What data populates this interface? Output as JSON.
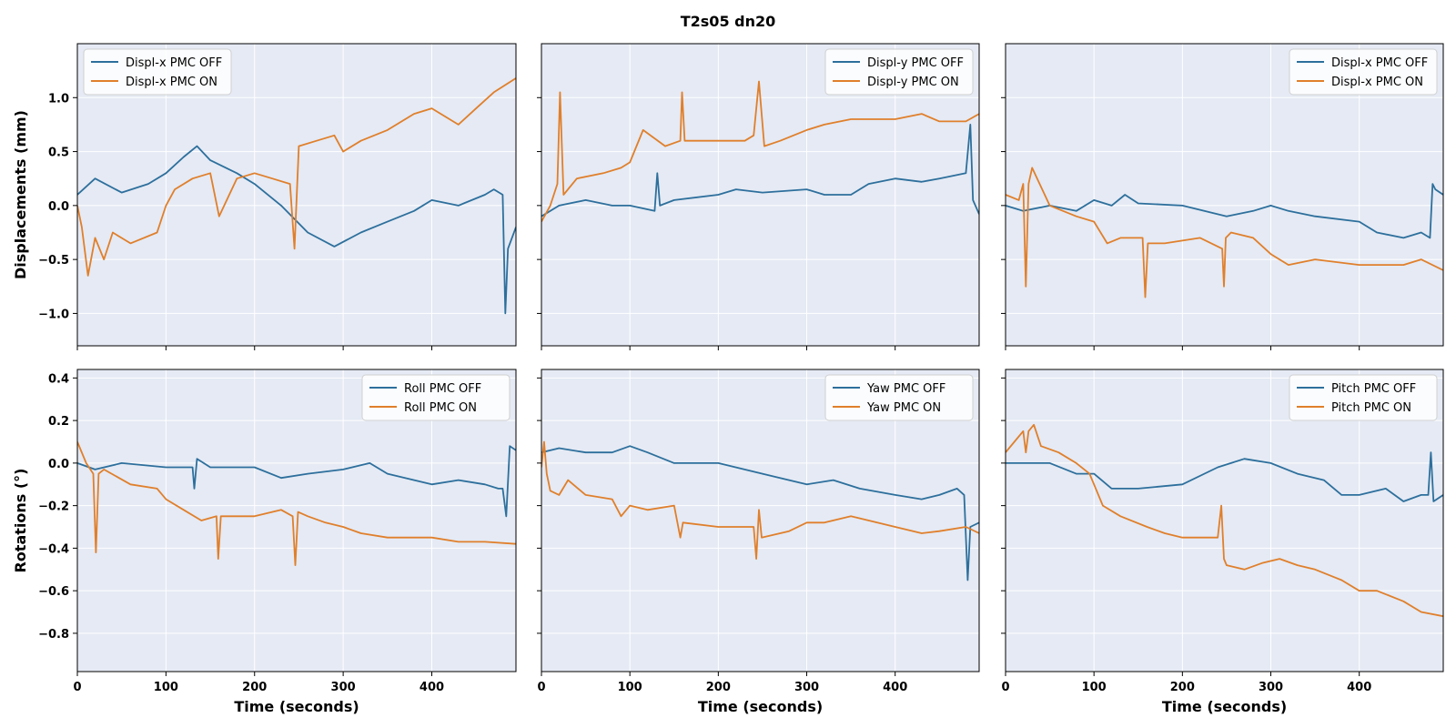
{
  "suptitle": "T2s05  dn20",
  "colors": {
    "off": "#2d6f9c",
    "on": "#e07f2b",
    "panel_bg": "#e5eaf4",
    "grid": "#ffffff"
  },
  "chart_data": [
    {
      "type": "line",
      "panel": "top-left",
      "ylabel": "Displacements (mm)",
      "xlabel": "",
      "xlim": [
        0,
        495
      ],
      "ylim": [
        -1.3,
        1.5
      ],
      "xticks": [
        0,
        100,
        200,
        300,
        400
      ],
      "yticks": [
        -1.0,
        -0.5,
        0.0,
        0.5,
        1.0
      ],
      "ytick_labels": [
        "−1.0",
        "−0.5",
        "0.0",
        "0.5",
        "1.0"
      ],
      "legend": "top-left",
      "series": [
        {
          "name": "Displ-x PMC OFF",
          "color": "off",
          "x": [
            0,
            20,
            50,
            80,
            100,
            120,
            135,
            150,
            180,
            200,
            230,
            260,
            290,
            320,
            350,
            380,
            400,
            430,
            460,
            470,
            480,
            483,
            486,
            495
          ],
          "y": [
            0.1,
            0.25,
            0.12,
            0.2,
            0.3,
            0.45,
            0.55,
            0.42,
            0.3,
            0.2,
            0.0,
            -0.25,
            -0.38,
            -0.25,
            -0.15,
            -0.05,
            0.05,
            0.0,
            0.1,
            0.15,
            0.1,
            -1.0,
            -0.4,
            -0.2
          ]
        },
        {
          "name": "Displ-x PMC ON",
          "color": "on",
          "x": [
            0,
            5,
            12,
            20,
            30,
            40,
            60,
            90,
            100,
            110,
            130,
            150,
            160,
            180,
            200,
            220,
            240,
            245,
            250,
            270,
            290,
            300,
            320,
            350,
            380,
            400,
            420,
            430,
            450,
            470,
            495
          ],
          "y": [
            0.0,
            -0.2,
            -0.65,
            -0.3,
            -0.5,
            -0.25,
            -0.35,
            -0.25,
            0.0,
            0.15,
            0.25,
            0.3,
            -0.1,
            0.25,
            0.3,
            0.25,
            0.2,
            -0.4,
            0.55,
            0.6,
            0.65,
            0.5,
            0.6,
            0.7,
            0.85,
            0.9,
            0.8,
            0.75,
            0.9,
            1.05,
            1.18
          ]
        }
      ]
    },
    {
      "type": "line",
      "panel": "top-middle",
      "ylabel": "",
      "xlabel": "",
      "xlim": [
        0,
        495
      ],
      "ylim": [
        -1.3,
        1.5
      ],
      "xticks": [
        0,
        100,
        200,
        300,
        400
      ],
      "yticks": [
        -1.0,
        -0.5,
        0.0,
        0.5,
        1.0
      ],
      "legend": "top-right",
      "series": [
        {
          "name": "Displ-y PMC OFF",
          "color": "off",
          "x": [
            0,
            20,
            50,
            80,
            100,
            128,
            131,
            134,
            150,
            200,
            220,
            250,
            300,
            320,
            350,
            370,
            400,
            430,
            450,
            480,
            485,
            488,
            495
          ],
          "y": [
            -0.1,
            0.0,
            0.05,
            0.0,
            0.0,
            -0.05,
            0.3,
            0.0,
            0.05,
            0.1,
            0.15,
            0.12,
            0.15,
            0.1,
            0.1,
            0.2,
            0.25,
            0.22,
            0.25,
            0.3,
            0.75,
            0.05,
            -0.08
          ]
        },
        {
          "name": "Displ-y PMC ON",
          "color": "on",
          "x": [
            0,
            10,
            18,
            21,
            25,
            40,
            70,
            90,
            100,
            115,
            140,
            157,
            159,
            162,
            200,
            230,
            240,
            246,
            252,
            270,
            300,
            320,
            350,
            380,
            400,
            430,
            450,
            480,
            495
          ],
          "y": [
            -0.15,
            0.0,
            0.2,
            1.05,
            0.1,
            0.25,
            0.3,
            0.35,
            0.4,
            0.7,
            0.55,
            0.6,
            1.05,
            0.6,
            0.6,
            0.6,
            0.65,
            1.15,
            0.55,
            0.6,
            0.7,
            0.75,
            0.8,
            0.8,
            0.8,
            0.85,
            0.78,
            0.78,
            0.85
          ]
        }
      ]
    },
    {
      "type": "line",
      "panel": "top-right",
      "ylabel": "",
      "xlabel": "",
      "xlim": [
        0,
        495
      ],
      "ylim": [
        -1.3,
        1.5
      ],
      "xticks": [
        0,
        100,
        200,
        300,
        400
      ],
      "yticks": [
        -1.0,
        -0.5,
        0.0,
        0.5,
        1.0
      ],
      "legend": "top-right",
      "series": [
        {
          "name": "Displ-x PMC OFF",
          "color": "off",
          "x": [
            0,
            20,
            50,
            80,
            100,
            120,
            135,
            150,
            200,
            250,
            280,
            300,
            320,
            350,
            400,
            420,
            450,
            470,
            480,
            483,
            486,
            495
          ],
          "y": [
            0.0,
            -0.05,
            0.0,
            -0.05,
            0.05,
            0.0,
            0.1,
            0.02,
            0.0,
            -0.1,
            -0.05,
            0.0,
            -0.05,
            -0.1,
            -0.15,
            -0.25,
            -0.3,
            -0.25,
            -0.3,
            0.2,
            0.15,
            0.1
          ]
        },
        {
          "name": "Displ-x PMC ON",
          "color": "on",
          "x": [
            0,
            15,
            20,
            23,
            26,
            30,
            50,
            80,
            100,
            115,
            130,
            155,
            158,
            161,
            180,
            220,
            245,
            247,
            249,
            255,
            280,
            300,
            320,
            350,
            400,
            450,
            470,
            495
          ],
          "y": [
            0.1,
            0.05,
            0.2,
            -0.75,
            0.2,
            0.35,
            0.0,
            -0.1,
            -0.15,
            -0.35,
            -0.3,
            -0.3,
            -0.85,
            -0.35,
            -0.35,
            -0.3,
            -0.4,
            -0.75,
            -0.3,
            -0.25,
            -0.3,
            -0.45,
            -0.55,
            -0.5,
            -0.55,
            -0.55,
            -0.5,
            -0.6
          ]
        }
      ]
    },
    {
      "type": "line",
      "panel": "bottom-left",
      "ylabel": "Rotations (°)",
      "xlabel": "Time (seconds)",
      "xlim": [
        0,
        495
      ],
      "ylim": [
        -0.98,
        0.44
      ],
      "xticks": [
        0,
        100,
        200,
        300,
        400
      ],
      "yticks": [
        -0.8,
        -0.6,
        -0.4,
        -0.2,
        0.0,
        0.2,
        0.4
      ],
      "ytick_labels": [
        "−0.8",
        "−0.6",
        "−0.4",
        "−0.2",
        "0.0",
        "0.2",
        "0.4"
      ],
      "legend": "top-right",
      "series": [
        {
          "name": "Roll PMC OFF",
          "color": "off",
          "x": [
            0,
            20,
            50,
            100,
            130,
            132,
            135,
            150,
            200,
            230,
            260,
            300,
            330,
            350,
            400,
            430,
            460,
            475,
            480,
            484,
            488,
            495
          ],
          "y": [
            0.0,
            -0.03,
            0.0,
            -0.02,
            -0.02,
            -0.12,
            0.02,
            -0.02,
            -0.02,
            -0.07,
            -0.05,
            -0.03,
            0.0,
            -0.05,
            -0.1,
            -0.08,
            -0.1,
            -0.12,
            -0.12,
            -0.25,
            0.08,
            0.06
          ]
        },
        {
          "name": "Roll PMC ON",
          "color": "on",
          "x": [
            0,
            10,
            18,
            21,
            24,
            30,
            60,
            90,
            100,
            120,
            140,
            157,
            159,
            162,
            200,
            230,
            243,
            246,
            249,
            260,
            280,
            300,
            320,
            350,
            400,
            430,
            460,
            495
          ],
          "y": [
            0.1,
            0.0,
            -0.05,
            -0.42,
            -0.05,
            -0.03,
            -0.1,
            -0.12,
            -0.17,
            -0.22,
            -0.27,
            -0.25,
            -0.45,
            -0.25,
            -0.25,
            -0.22,
            -0.25,
            -0.48,
            -0.23,
            -0.25,
            -0.28,
            -0.3,
            -0.33,
            -0.35,
            -0.35,
            -0.37,
            -0.37,
            -0.38
          ]
        }
      ]
    },
    {
      "type": "line",
      "panel": "bottom-middle",
      "ylabel": "",
      "xlabel": "Time (seconds)",
      "xlim": [
        0,
        495
      ],
      "ylim": [
        -0.98,
        0.44
      ],
      "xticks": [
        0,
        100,
        200,
        300,
        400
      ],
      "yticks": [
        -0.8,
        -0.6,
        -0.4,
        -0.2,
        0.0,
        0.2,
        0.4
      ],
      "legend": "top-right",
      "series": [
        {
          "name": "Yaw PMC OFF",
          "color": "off",
          "x": [
            0,
            20,
            50,
            80,
            100,
            120,
            150,
            200,
            250,
            280,
            300,
            330,
            360,
            400,
            430,
            450,
            470,
            478,
            482,
            485,
            495
          ],
          "y": [
            0.05,
            0.07,
            0.05,
            0.05,
            0.08,
            0.05,
            0.0,
            0.0,
            -0.05,
            -0.08,
            -0.1,
            -0.08,
            -0.12,
            -0.15,
            -0.17,
            -0.15,
            -0.12,
            -0.15,
            -0.55,
            -0.3,
            -0.28
          ]
        },
        {
          "name": "Yaw PMC ON",
          "color": "on",
          "x": [
            0,
            3,
            6,
            10,
            20,
            30,
            50,
            80,
            90,
            100,
            120,
            150,
            157,
            160,
            200,
            240,
            243,
            246,
            249,
            280,
            300,
            320,
            350,
            400,
            430,
            450,
            480,
            495
          ],
          "y": [
            -0.02,
            0.1,
            -0.05,
            -0.13,
            -0.15,
            -0.08,
            -0.15,
            -0.17,
            -0.25,
            -0.2,
            -0.22,
            -0.2,
            -0.35,
            -0.28,
            -0.3,
            -0.3,
            -0.45,
            -0.22,
            -0.35,
            -0.32,
            -0.28,
            -0.28,
            -0.25,
            -0.3,
            -0.33,
            -0.32,
            -0.3,
            -0.33
          ]
        }
      ]
    },
    {
      "type": "line",
      "panel": "bottom-right",
      "ylabel": "",
      "xlabel": "Time (seconds)",
      "xlim": [
        0,
        495
      ],
      "ylim": [
        -0.98,
        0.44
      ],
      "xticks": [
        0,
        100,
        200,
        300,
        400
      ],
      "yticks": [
        -0.8,
        -0.6,
        -0.4,
        -0.2,
        0.0,
        0.2,
        0.4
      ],
      "legend": "top-right",
      "series": [
        {
          "name": "Pitch PMC OFF",
          "color": "off",
          "x": [
            0,
            20,
            50,
            80,
            100,
            120,
            150,
            200,
            240,
            270,
            300,
            330,
            360,
            380,
            400,
            430,
            450,
            470,
            478,
            481,
            484,
            495
          ],
          "y": [
            0.0,
            0.0,
            0.0,
            -0.05,
            -0.05,
            -0.12,
            -0.12,
            -0.1,
            -0.02,
            0.02,
            0.0,
            -0.05,
            -0.08,
            -0.15,
            -0.15,
            -0.12,
            -0.18,
            -0.15,
            -0.15,
            0.05,
            -0.18,
            -0.15
          ]
        },
        {
          "name": "Pitch PMC ON",
          "color": "on",
          "x": [
            0,
            10,
            20,
            23,
            26,
            32,
            40,
            60,
            80,
            95,
            100,
            110,
            130,
            160,
            180,
            200,
            240,
            244,
            247,
            250,
            270,
            290,
            310,
            330,
            350,
            380,
            400,
            420,
            450,
            470,
            495
          ],
          "y": [
            0.05,
            0.1,
            0.15,
            0.05,
            0.15,
            0.18,
            0.08,
            0.05,
            0.0,
            -0.05,
            -0.1,
            -0.2,
            -0.25,
            -0.3,
            -0.33,
            -0.35,
            -0.35,
            -0.2,
            -0.45,
            -0.48,
            -0.5,
            -0.47,
            -0.45,
            -0.48,
            -0.5,
            -0.55,
            -0.6,
            -0.6,
            -0.65,
            -0.7,
            -0.72
          ]
        }
      ]
    }
  ]
}
